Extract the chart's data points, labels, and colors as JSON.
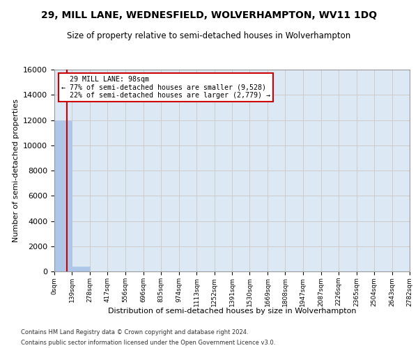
{
  "title": "29, MILL LANE, WEDNESFIELD, WOLVERHAMPTON, WV11 1DQ",
  "subtitle": "Size of property relative to semi-detached houses in Wolverhampton",
  "xlabel": "Distribution of semi-detached houses by size in Wolverhampton",
  "ylabel": "Number of semi-detached properties",
  "footnote1": "Contains HM Land Registry data © Crown copyright and database right 2024.",
  "footnote2": "Contains public sector information licensed under the Open Government Licence v3.0.",
  "property_size": 98,
  "property_label": "29 MILL LANE: 98sqm",
  "pct_smaller": 77,
  "n_smaller": 9528,
  "pct_larger": 22,
  "n_larger": 2779,
  "bin_edges": [
    0,
    139,
    278,
    417,
    556,
    696,
    835,
    974,
    1113,
    1252,
    1391,
    1530,
    1669,
    1808,
    1947,
    2087,
    2226,
    2365,
    2504,
    2643,
    2782
  ],
  "bin_labels": [
    "0sqm",
    "139sqm",
    "278sqm",
    "417sqm",
    "556sqm",
    "696sqm",
    "835sqm",
    "974sqm",
    "1113sqm",
    "1252sqm",
    "1391sqm",
    "1530sqm",
    "1669sqm",
    "1808sqm",
    "1947sqm",
    "2087sqm",
    "2226sqm",
    "2365sqm",
    "2504sqm",
    "2643sqm",
    "2782sqm"
  ],
  "bar_heights": [
    12000,
    400,
    5,
    2,
    1,
    1,
    0,
    0,
    0,
    0,
    0,
    0,
    0,
    0,
    0,
    0,
    0,
    0,
    0,
    0
  ],
  "bar_color": "#aec6e8",
  "bar_edge_color": "#aec6e8",
  "vline_color": "#cc0000",
  "vline_x": 98,
  "annotation_box_color": "#ffffff",
  "annotation_box_edge_color": "#cc0000",
  "grid_color": "#cccccc",
  "background_color": "#dce9f5",
  "ylim": [
    0,
    16000
  ],
  "yticks": [
    0,
    2000,
    4000,
    6000,
    8000,
    10000,
    12000,
    14000,
    16000
  ]
}
